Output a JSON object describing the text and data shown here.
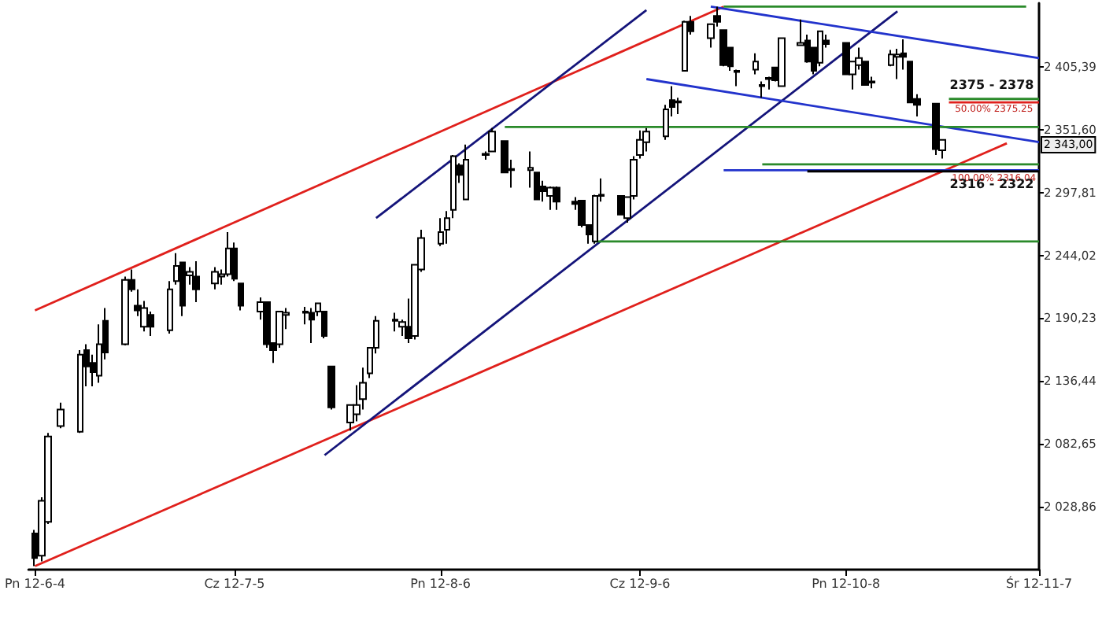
{
  "chart_data": {
    "type": "candlestick",
    "x": [
      "2012-06-04",
      "2012-06-05",
      "2012-06-06",
      "2012-06-08",
      "2012-06-11",
      "2012-06-12",
      "2012-06-13",
      "2012-06-14",
      "2012-06-15",
      "2012-06-18",
      "2012-06-19",
      "2012-06-20",
      "2012-06-21",
      "2012-06-22",
      "2012-06-25",
      "2012-06-26",
      "2012-06-27",
      "2012-06-28",
      "2012-06-29",
      "2012-07-02",
      "2012-07-03",
      "2012-07-04",
      "2012-07-05",
      "2012-07-06",
      "2012-07-09",
      "2012-07-10",
      "2012-07-11",
      "2012-07-12",
      "2012-07-13",
      "2012-07-16",
      "2012-07-17",
      "2012-07-18",
      "2012-07-19",
      "2012-07-20",
      "2012-07-23",
      "2012-07-24",
      "2012-07-25",
      "2012-07-26",
      "2012-07-27",
      "2012-07-30",
      "2012-07-31",
      "2012-08-01",
      "2012-08-02",
      "2012-08-03",
      "2012-08-06",
      "2012-08-07",
      "2012-08-08",
      "2012-08-09",
      "2012-08-10",
      "2012-08-13",
      "2012-08-14",
      "2012-08-16",
      "2012-08-17",
      "2012-08-20",
      "2012-08-21",
      "2012-08-22",
      "2012-08-23",
      "2012-08-24",
      "2012-08-27",
      "2012-08-28",
      "2012-08-29",
      "2012-08-30",
      "2012-08-31",
      "2012-09-03",
      "2012-09-04",
      "2012-09-05",
      "2012-09-06",
      "2012-09-07",
      "2012-09-10",
      "2012-09-11",
      "2012-09-12",
      "2012-09-13",
      "2012-09-14",
      "2012-09-17",
      "2012-09-18",
      "2012-09-19",
      "2012-09-20",
      "2012-09-21",
      "2012-09-24",
      "2012-09-25",
      "2012-09-26",
      "2012-09-27",
      "2012-09-28",
      "2012-10-01",
      "2012-10-02",
      "2012-10-03",
      "2012-10-04",
      "2012-10-05",
      "2012-10-08",
      "2012-10-09",
      "2012-10-10",
      "2012-10-11",
      "2012-10-12",
      "2012-10-15",
      "2012-10-16",
      "2012-10-17",
      "2012-10-18",
      "2012-10-19",
      "2012-10-22",
      "2012-10-23"
    ],
    "ohlc": [
      [
        2006,
        2009,
        1978,
        1985
      ],
      [
        1987,
        2037,
        1982,
        2034
      ],
      [
        2016,
        2092,
        2014,
        2089
      ],
      [
        2098,
        2118,
        2096,
        2112
      ],
      [
        2093,
        2163,
        2092,
        2159
      ],
      [
        2163,
        2168,
        2132,
        2149
      ],
      [
        2152,
        2159,
        2132,
        2144
      ],
      [
        2141,
        2185,
        2135,
        2168
      ],
      [
        2188,
        2199,
        2155,
        2161
      ],
      [
        2168,
        2226,
        2167,
        2223
      ],
      [
        2223,
        2232,
        2213,
        2215
      ],
      [
        2201,
        2215,
        2192,
        2197
      ],
      [
        2183,
        2205,
        2179,
        2199
      ],
      [
        2193,
        2196,
        2175,
        2183
      ],
      [
        2180,
        2222,
        2177,
        2215
      ],
      [
        2222,
        2246,
        2219,
        2235
      ],
      [
        2238,
        2238,
        2192,
        2201
      ],
      [
        2227,
        2234,
        2219,
        2230
      ],
      [
        2226,
        2239,
        2204,
        2215
      ],
      [
        2220,
        2234,
        2215,
        2230
      ],
      [
        2226,
        2232,
        2219,
        2228
      ],
      [
        2228,
        2264,
        2226,
        2250
      ],
      [
        2250,
        2255,
        2222,
        2224
      ],
      [
        2220,
        2220,
        2197,
        2201
      ],
      [
        2196,
        2208,
        2189,
        2204
      ],
      [
        2204,
        2204,
        2165,
        2168
      ],
      [
        2169,
        2169,
        2152,
        2163
      ],
      [
        2168,
        2196,
        2165,
        2196
      ],
      [
        2193,
        2199,
        2181,
        2195
      ],
      [
        2195,
        2200,
        2185,
        2196
      ],
      [
        2195,
        2199,
        2169,
        2189
      ],
      [
        2196,
        2203,
        2192,
        2203
      ],
      [
        2196,
        2196,
        2173,
        2175
      ],
      [
        2149,
        2149,
        2112,
        2114
      ],
      [
        2101,
        2116,
        2094,
        2116
      ],
      [
        2108,
        2133,
        2102,
        2116
      ],
      [
        2121,
        2148,
        2112,
        2135
      ],
      [
        2143,
        2165,
        2139,
        2165
      ],
      [
        2165,
        2192,
        2160,
        2188
      ],
      [
        2188,
        2195,
        2179,
        2189
      ],
      [
        2183,
        2189,
        2175,
        2187
      ],
      [
        2183,
        2207,
        2169,
        2173
      ],
      [
        2175,
        2236,
        2172,
        2236
      ],
      [
        2232,
        2266,
        2230,
        2259
      ],
      [
        2254,
        2276,
        2252,
        2264
      ],
      [
        2266,
        2282,
        2254,
        2276
      ],
      [
        2283,
        2330,
        2276,
        2329
      ],
      [
        2321,
        2323,
        2306,
        2313
      ],
      [
        2292,
        2339,
        2292,
        2326
      ],
      [
        2330,
        2333,
        2326,
        2331
      ],
      [
        2333,
        2353,
        2333,
        2350
      ],
      [
        2342,
        2342,
        2315,
        2315
      ],
      [
        2318,
        2326,
        2302,
        2317
      ],
      [
        2317,
        2333,
        2302,
        2319
      ],
      [
        2315,
        2315,
        2292,
        2292
      ],
      [
        2303,
        2308,
        2290,
        2299
      ],
      [
        2295,
        2303,
        2283,
        2302
      ],
      [
        2302,
        2303,
        2283,
        2290
      ],
      [
        2290,
        2294,
        2283,
        2288
      ],
      [
        2291,
        2291,
        2268,
        2270
      ],
      [
        2270,
        2270,
        2254,
        2262
      ],
      [
        2256,
        2296,
        2254,
        2295
      ],
      [
        2295,
        2310,
        2290,
        2296
      ],
      [
        2295,
        2295,
        2279,
        2279
      ],
      [
        2276,
        2294,
        2272,
        2294
      ],
      [
        2295,
        2329,
        2292,
        2326
      ],
      [
        2330,
        2351,
        2327,
        2343
      ],
      [
        2341,
        2353,
        2333,
        2350
      ],
      [
        2346,
        2373,
        2343,
        2369
      ],
      [
        2377,
        2389,
        2363,
        2371
      ],
      [
        2375,
        2379,
        2365,
        2376
      ],
      [
        2402,
        2445,
        2402,
        2444
      ],
      [
        2444,
        2449,
        2433,
        2436
      ],
      [
        2430,
        2442,
        2422,
        2442
      ],
      [
        2449,
        2457,
        2440,
        2444
      ],
      [
        2437,
        2437,
        2406,
        2407
      ],
      [
        2422,
        2422,
        2402,
        2406
      ],
      [
        2401,
        2403,
        2389,
        2402
      ],
      [
        2403,
        2417,
        2399,
        2410
      ],
      [
        2389,
        2393,
        2379,
        2390
      ],
      [
        2395,
        2397,
        2386,
        2396
      ],
      [
        2405,
        2405,
        2393,
        2394
      ],
      [
        2389,
        2430,
        2389,
        2430
      ],
      [
        2424,
        2446,
        2424,
        2426
      ],
      [
        2428,
        2433,
        2409,
        2410
      ],
      [
        2422,
        2422,
        2399,
        2402
      ],
      [
        2409,
        2436,
        2406,
        2436
      ],
      [
        2428,
        2433,
        2422,
        2425
      ],
      [
        2426,
        2426,
        2399,
        2399
      ],
      [
        2399,
        2410,
        2386,
        2410
      ],
      [
        2407,
        2422,
        2403,
        2413
      ],
      [
        2410,
        2410,
        2390,
        2390
      ],
      [
        2392,
        2397,
        2387,
        2393
      ],
      [
        2407,
        2420,
        2406,
        2416
      ],
      [
        2414,
        2421,
        2395,
        2416
      ],
      [
        2417,
        2429,
        2403,
        2414
      ],
      [
        2410,
        2410,
        2375,
        2375
      ],
      [
        2378,
        2382,
        2363,
        2373
      ],
      [
        2374,
        2374,
        2330,
        2335
      ],
      [
        2334,
        2343,
        2327,
        2343
      ]
    ],
    "color": "#000000",
    "series": [
      {
        "type": "line",
        "color": "#e0201c",
        "x": [
          "2012-06-04",
          "2012-09-19"
        ],
        "values": [
          2197,
          2457
        ]
      },
      {
        "type": "line",
        "color": "#e0201c",
        "x": [
          "2012-06-04",
          "2012-11-02"
        ],
        "values": [
          1978,
          2340
        ]
      },
      {
        "type": "line",
        "color": "#14147a",
        "x": [
          "2012-07-27",
          "2012-09-07"
        ],
        "values": [
          2276,
          2454
        ]
      },
      {
        "type": "line",
        "color": "#14147a",
        "x": [
          "2012-07-19",
          "2012-10-16"
        ],
        "values": [
          2073,
          2453
        ]
      },
      {
        "type": "line",
        "color": "#2233cc",
        "x": [
          "2012-09-17",
          "2012-11-07"
        ],
        "values": [
          2457,
          2413
        ]
      },
      {
        "type": "line",
        "color": "#2233cc",
        "x": [
          "2012-09-07",
          "2012-11-07"
        ],
        "values": [
          2395,
          2341
        ]
      },
      {
        "type": "line",
        "color": "#2233cc",
        "x": [
          "2012-09-19",
          "2012-11-07"
        ],
        "values": [
          2317,
          2317
        ]
      },
      {
        "type": "line",
        "color": "#000000",
        "x": [
          "2012-10-02",
          "2012-11-07"
        ],
        "values": [
          2316,
          2316
        ]
      },
      {
        "type": "line",
        "color": "#2a8a2a",
        "x": [
          "2012-09-19",
          "2012-11-05"
        ],
        "values": [
          2457,
          2457
        ]
      },
      {
        "type": "line",
        "color": "#2a8a2a",
        "x": [
          "2012-08-16",
          "2012-11-07"
        ],
        "values": [
          2354,
          2354
        ]
      },
      {
        "type": "line",
        "color": "#2a8a2a",
        "x": [
          "2012-08-30",
          "2012-11-07"
        ],
        "values": [
          2256,
          2256
        ]
      },
      {
        "type": "line",
        "color": "#2a8a2a",
        "x": [
          "2012-10-24",
          "2012-11-07"
        ],
        "values": [
          2378,
          2378
        ]
      },
      {
        "type": "line",
        "color": "#e0201c",
        "x": [
          "2012-10-24",
          "2012-11-07"
        ],
        "values": [
          2375,
          2375
        ]
      },
      {
        "type": "line",
        "color": "#2a8a2a",
        "x": [
          "2012-09-25",
          "2012-11-07"
        ],
        "values": [
          2322,
          2322
        ]
      }
    ],
    "xlim": [
      "2012-06-03",
      "2012-11-07"
    ],
    "xticks": [
      {
        "value": "2012-06-04",
        "label": "Pn 12-6-4"
      },
      {
        "value": "2012-07-05",
        "label": "Cz 12-7-5"
      },
      {
        "value": "2012-08-06",
        "label": "Pn 12-8-6"
      },
      {
        "value": "2012-09-06",
        "label": "Cz 12-9-6"
      },
      {
        "value": "2012-10-08",
        "label": "Pn 12-10-8"
      },
      {
        "value": "2012-11-07",
        "label": "Śr 12-11-7"
      }
    ],
    "ylim": [
      1975,
      2460
    ],
    "yticks": [
      {
        "value": 2028.86,
        "label": "2 028,86"
      },
      {
        "value": 2082.65,
        "label": "2 082,65"
      },
      {
        "value": 2136.44,
        "label": "2 136,44"
      },
      {
        "value": 2190.23,
        "label": "2 190,23"
      },
      {
        "value": 2244.02,
        "label": "2 244,02"
      },
      {
        "value": 2297.81,
        "label": "2 297,81"
      },
      {
        "value": 2351.6,
        "label": "2 351,60"
      },
      {
        "value": 2405.39,
        "label": "2 405,39"
      }
    ],
    "annotations": [
      "2375 - 2378",
      {
        "text": "50.00% 2375.25",
        "x": "2012-10-31",
        "y": 2375
      },
      {
        "text": "100.00% 2316.04",
        "x": "2012-10-31",
        "y": 2316
      },
      "2316 - 2322",
      "2 343,00"
    ],
    "grid": false
  }
}
